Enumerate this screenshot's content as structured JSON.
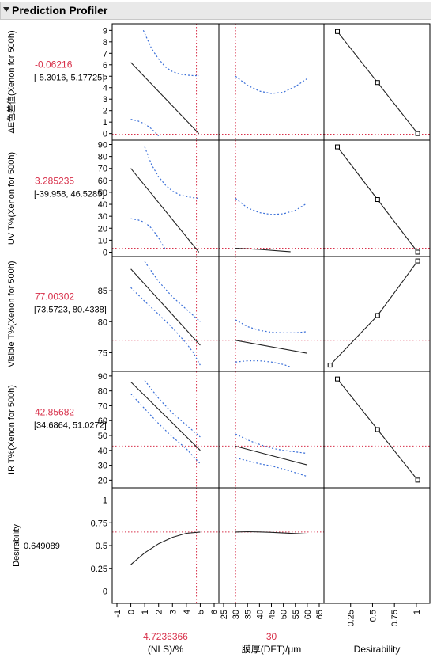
{
  "window": {
    "title": "Prediction Profiler"
  },
  "chart_data": {
    "type": "line",
    "title": "Prediction Profiler",
    "factors": [
      {
        "label": "(NLS)/%",
        "current": "4.7236366",
        "current_value": 4.7236366,
        "range": [
          -1,
          6
        ],
        "ticks": [
          -1,
          0,
          1,
          2,
          3,
          4,
          5,
          6
        ]
      },
      {
        "label": "膜厚(DFT)/μm",
        "current": "30",
        "current_value": 30,
        "range": [
          25,
          65
        ],
        "ticks": [
          25,
          30,
          35,
          40,
          45,
          50,
          55,
          60,
          65
        ]
      },
      {
        "label": "Desirability",
        "range": [
          0,
          1.1
        ],
        "ticks": [
          0.25,
          0.5,
          0.75,
          1
        ]
      }
    ],
    "responses": [
      {
        "label": "ΔE色差值(Xenon for 500h)",
        "value": "-0.06216",
        "ci": "[-5.3016, 5.17725]",
        "ylim": [
          -0.3,
          9.3
        ],
        "ticks": [
          0,
          1,
          2,
          3,
          4,
          5,
          6,
          7,
          8,
          9
        ],
        "current_y": -0.06216,
        "panels": [
          {
            "pred": {
              "x": [
                0,
                4.9
              ],
              "y": [
                6.2,
                0
              ]
            },
            "lower": {
              "x": [
                0,
                0.5,
                1,
                1.5,
                2
              ],
              "y": [
                1.25,
                1.1,
                0.85,
                0.4,
                -0.2
              ]
            },
            "upper": {
              "x": [
                0.9,
                1.5,
                2,
                2.5,
                3,
                3.5,
                4,
                4.5,
                4.9
              ],
              "y": [
                9,
                7.4,
                6.5,
                5.8,
                5.4,
                5.2,
                5.1,
                5.05,
                5.05
              ]
            }
          },
          {
            "pred": {
              "x": [],
              "y": []
            },
            "lower": {
              "x": [],
              "y": []
            },
            "upper": {
              "x": [
                30,
                35,
                40,
                45,
                50,
                55,
                60
              ],
              "y": [
                5,
                4.2,
                3.7,
                3.5,
                3.6,
                4.1,
                4.8
              ]
            }
          }
        ],
        "desirability": {
          "x": [
            0.0993,
            0.5574,
            1.0154
          ],
          "y": [
            8.9,
            4.45,
            0
          ]
        }
      },
      {
        "label": "UV T%(Xenon for 500h)",
        "value": "3.285235",
        "ci": "[-39.958, 46.5285]",
        "ylim": [
          -1,
          91
        ],
        "ticks": [
          0,
          10,
          20,
          30,
          40,
          50,
          60,
          70,
          80,
          90
        ],
        "current_y": 3.285235,
        "panels": [
          {
            "pred": {
              "x": [
                0,
                4.9
              ],
              "y": [
                70,
                0
              ]
            },
            "lower": {
              "x": [
                0,
                0.5,
                1,
                1.5,
                2,
                2.5
              ],
              "y": [
                28,
                27,
                25,
                20,
                12,
                2
              ]
            },
            "upper": {
              "x": [
                1,
                1.5,
                2,
                2.5,
                3,
                3.5,
                4,
                4.5,
                4.9
              ],
              "y": [
                88,
                73,
                63,
                56,
                51,
                48,
                46.5,
                45.5,
                45
              ]
            }
          },
          {
            "pred": {
              "x": [
                30,
                40,
                50,
                53
              ],
              "y": [
                3.3,
                2.3,
                0.8,
                0.4
              ]
            },
            "lower": {
              "x": [],
              "y": []
            },
            "upper": {
              "x": [
                30,
                35,
                40,
                45,
                50,
                55,
                60
              ],
              "y": [
                45,
                37,
                33,
                31.5,
                32,
                35,
                41
              ]
            }
          }
        ],
        "desirability": {
          "x": [
            0.0993,
            0.5574,
            1.0154
          ],
          "y": [
            88,
            44,
            0
          ]
        }
      },
      {
        "label": "Visible T%(Xenon for 500h)",
        "value": "77.00302",
        "ci": "[73.5723, 80.4338]",
        "ylim": [
          72.5,
          90
        ],
        "ticks": [
          75,
          80,
          85
        ],
        "current_y": 77.00302,
        "panels": [
          {
            "pred": {
              "x": [
                0,
                5
              ],
              "y": [
                88.5,
                76.2
              ]
            },
            "lower": {
              "x": [
                0,
                1,
                2,
                3,
                4,
                4.5,
                5
              ],
              "y": [
                85.5,
                83.3,
                81.2,
                79,
                76.5,
                75,
                73
              ]
            },
            "upper": {
              "x": [
                1,
                2,
                3,
                4,
                5
              ],
              "y": [
                89.7,
                86.5,
                84,
                82,
                80
              ]
            }
          },
          {
            "pred": {
              "x": [
                30,
                60
              ],
              "y": [
                77,
                74.9
              ]
            },
            "lower": {
              "x": [
                30,
                35,
                40,
                45,
                50,
                53
              ],
              "y": [
                73.5,
                73.7,
                73.7,
                73.5,
                73.1,
                72.7
              ]
            },
            "upper": {
              "x": [
                30,
                35,
                40,
                45,
                50,
                55,
                60
              ],
              "y": [
                80.3,
                79.2,
                78.6,
                78.3,
                78.2,
                78.2,
                78.4
              ]
            }
          }
        ],
        "desirability": {
          "x": [
            0.0154,
            0.5574,
            1.0154
          ],
          "y": [
            73,
            81,
            89.8
          ]
        }
      },
      {
        "label": "IR T%(Xenon for 500h)",
        "value": "42.85682",
        "ci": "[34.6864, 51.0272]",
        "ylim": [
          17,
          91
        ],
        "ticks": [
          20,
          30,
          40,
          50,
          60,
          70,
          80,
          90
        ],
        "current_y": 42.85682,
        "panels": [
          {
            "pred": {
              "x": [
                0,
                5
              ],
              "y": [
                86,
                40
              ]
            },
            "lower": {
              "x": [
                0,
                1,
                2,
                3,
                4,
                5
              ],
              "y": [
                78,
                68,
                58,
                49,
                41,
                31
              ]
            },
            "upper": {
              "x": [
                1,
                2,
                3,
                4,
                5
              ],
              "y": [
                87,
                75,
                65,
                57,
                49
              ]
            }
          },
          {
            "pred": {
              "x": [
                30,
                60
              ],
              "y": [
                42.8,
                30.2
              ]
            },
            "lower": {
              "x": [
                30,
                35,
                40,
                45,
                50,
                55,
                60
              ],
              "y": [
                35,
                33,
                31,
                29.5,
                27.5,
                25,
                22.5
              ]
            },
            "upper": {
              "x": [
                30,
                35,
                40,
                45,
                50,
                55,
                60
              ],
              "y": [
                51,
                47,
                44,
                41.5,
                40,
                39,
                38
              ]
            }
          }
        ],
        "desirability": {
          "x": [
            0.0993,
            0.5574,
            1.0154
          ],
          "y": [
            88,
            54,
            20
          ]
        }
      },
      {
        "label": "Desirability",
        "value": "0.649089",
        "ci": "",
        "ylim": [
          -0.1,
          1.1
        ],
        "ticks": [
          0,
          0.25,
          0.5,
          0.75,
          1
        ],
        "tick_labels": [
          "0",
          "0.25",
          "0.5",
          "0.75",
          "1"
        ],
        "current_y": 0.649089,
        "panels": [
          {
            "pred": {
              "x": [
                0,
                1,
                2,
                3,
                4,
                5
              ],
              "y": [
                0.29,
                0.42,
                0.52,
                0.59,
                0.635,
                0.649
              ]
            },
            "lower": {
              "x": [],
              "y": []
            },
            "upper": {
              "x": [],
              "y": []
            }
          },
          {
            "pred": {
              "x": [
                30,
                35,
                40,
                45,
                50,
                55,
                60
              ],
              "y": [
                0.649,
                0.652,
                0.65,
                0.645,
                0.638,
                0.632,
                0.626
              ]
            },
            "lower": {
              "x": [],
              "y": []
            },
            "upper": {
              "x": [],
              "y": []
            }
          }
        ]
      }
    ]
  },
  "colors": {
    "pred": "#222222",
    "ci": "#3a6fd8",
    "ref": "#d8304a",
    "value_text": "#d8304a",
    "frame": "#000000",
    "header_bg": "#e9e9e9"
  }
}
